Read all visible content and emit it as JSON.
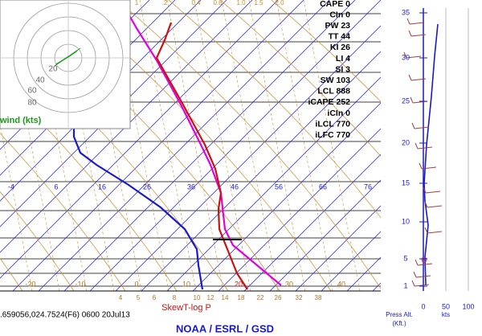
{
  "indices": [
    "CAPE 0",
    "CIn 0",
    "PW 23",
    "TT 44",
    "KI 26",
    "LI 4",
    "SI 3",
    "SW 103",
    "LCL 888",
    "iCAPE 252",
    "iCIn 0",
    "iLCL 770",
    "iLFC 770"
  ],
  "hodograph": {
    "rings": [
      "20",
      "40",
      "60",
      "80"
    ],
    "label": "wind (kts)"
  },
  "mixing_ratio_top": [
    "1",
    ".2",
    "0.4",
    "0.6",
    "1.0",
    "1.5",
    "2.0"
  ],
  "isotherm_labels": [
    "-4",
    "6",
    "16",
    "26",
    "36",
    "46",
    "56",
    "66",
    "76"
  ],
  "temperature_labels": [
    "-20",
    "-10",
    "0",
    "10",
    "20",
    "30",
    "40"
  ],
  "mixing_ratio_bottom": [
    "4",
    "5",
    "6",
    "8",
    "10",
    "12",
    "14",
    "18",
    "22",
    "26",
    "32",
    "38"
  ],
  "altitude_labels": [
    "35",
    "30",
    "25",
    "20",
    "15",
    "10",
    "5",
    "1"
  ],
  "speed_labels": [
    "0",
    "50",
    "100"
  ],
  "press_alt_label": "Press Alt.",
  "kft_label": "(Kft.)",
  "kts_label": "kts",
  "footer_station": ".659056,024.7524(F6) 0600 20Jul13",
  "footer_title": "SkewT-log P",
  "footer_org": "NOAA / ESRL / GSD"
}
